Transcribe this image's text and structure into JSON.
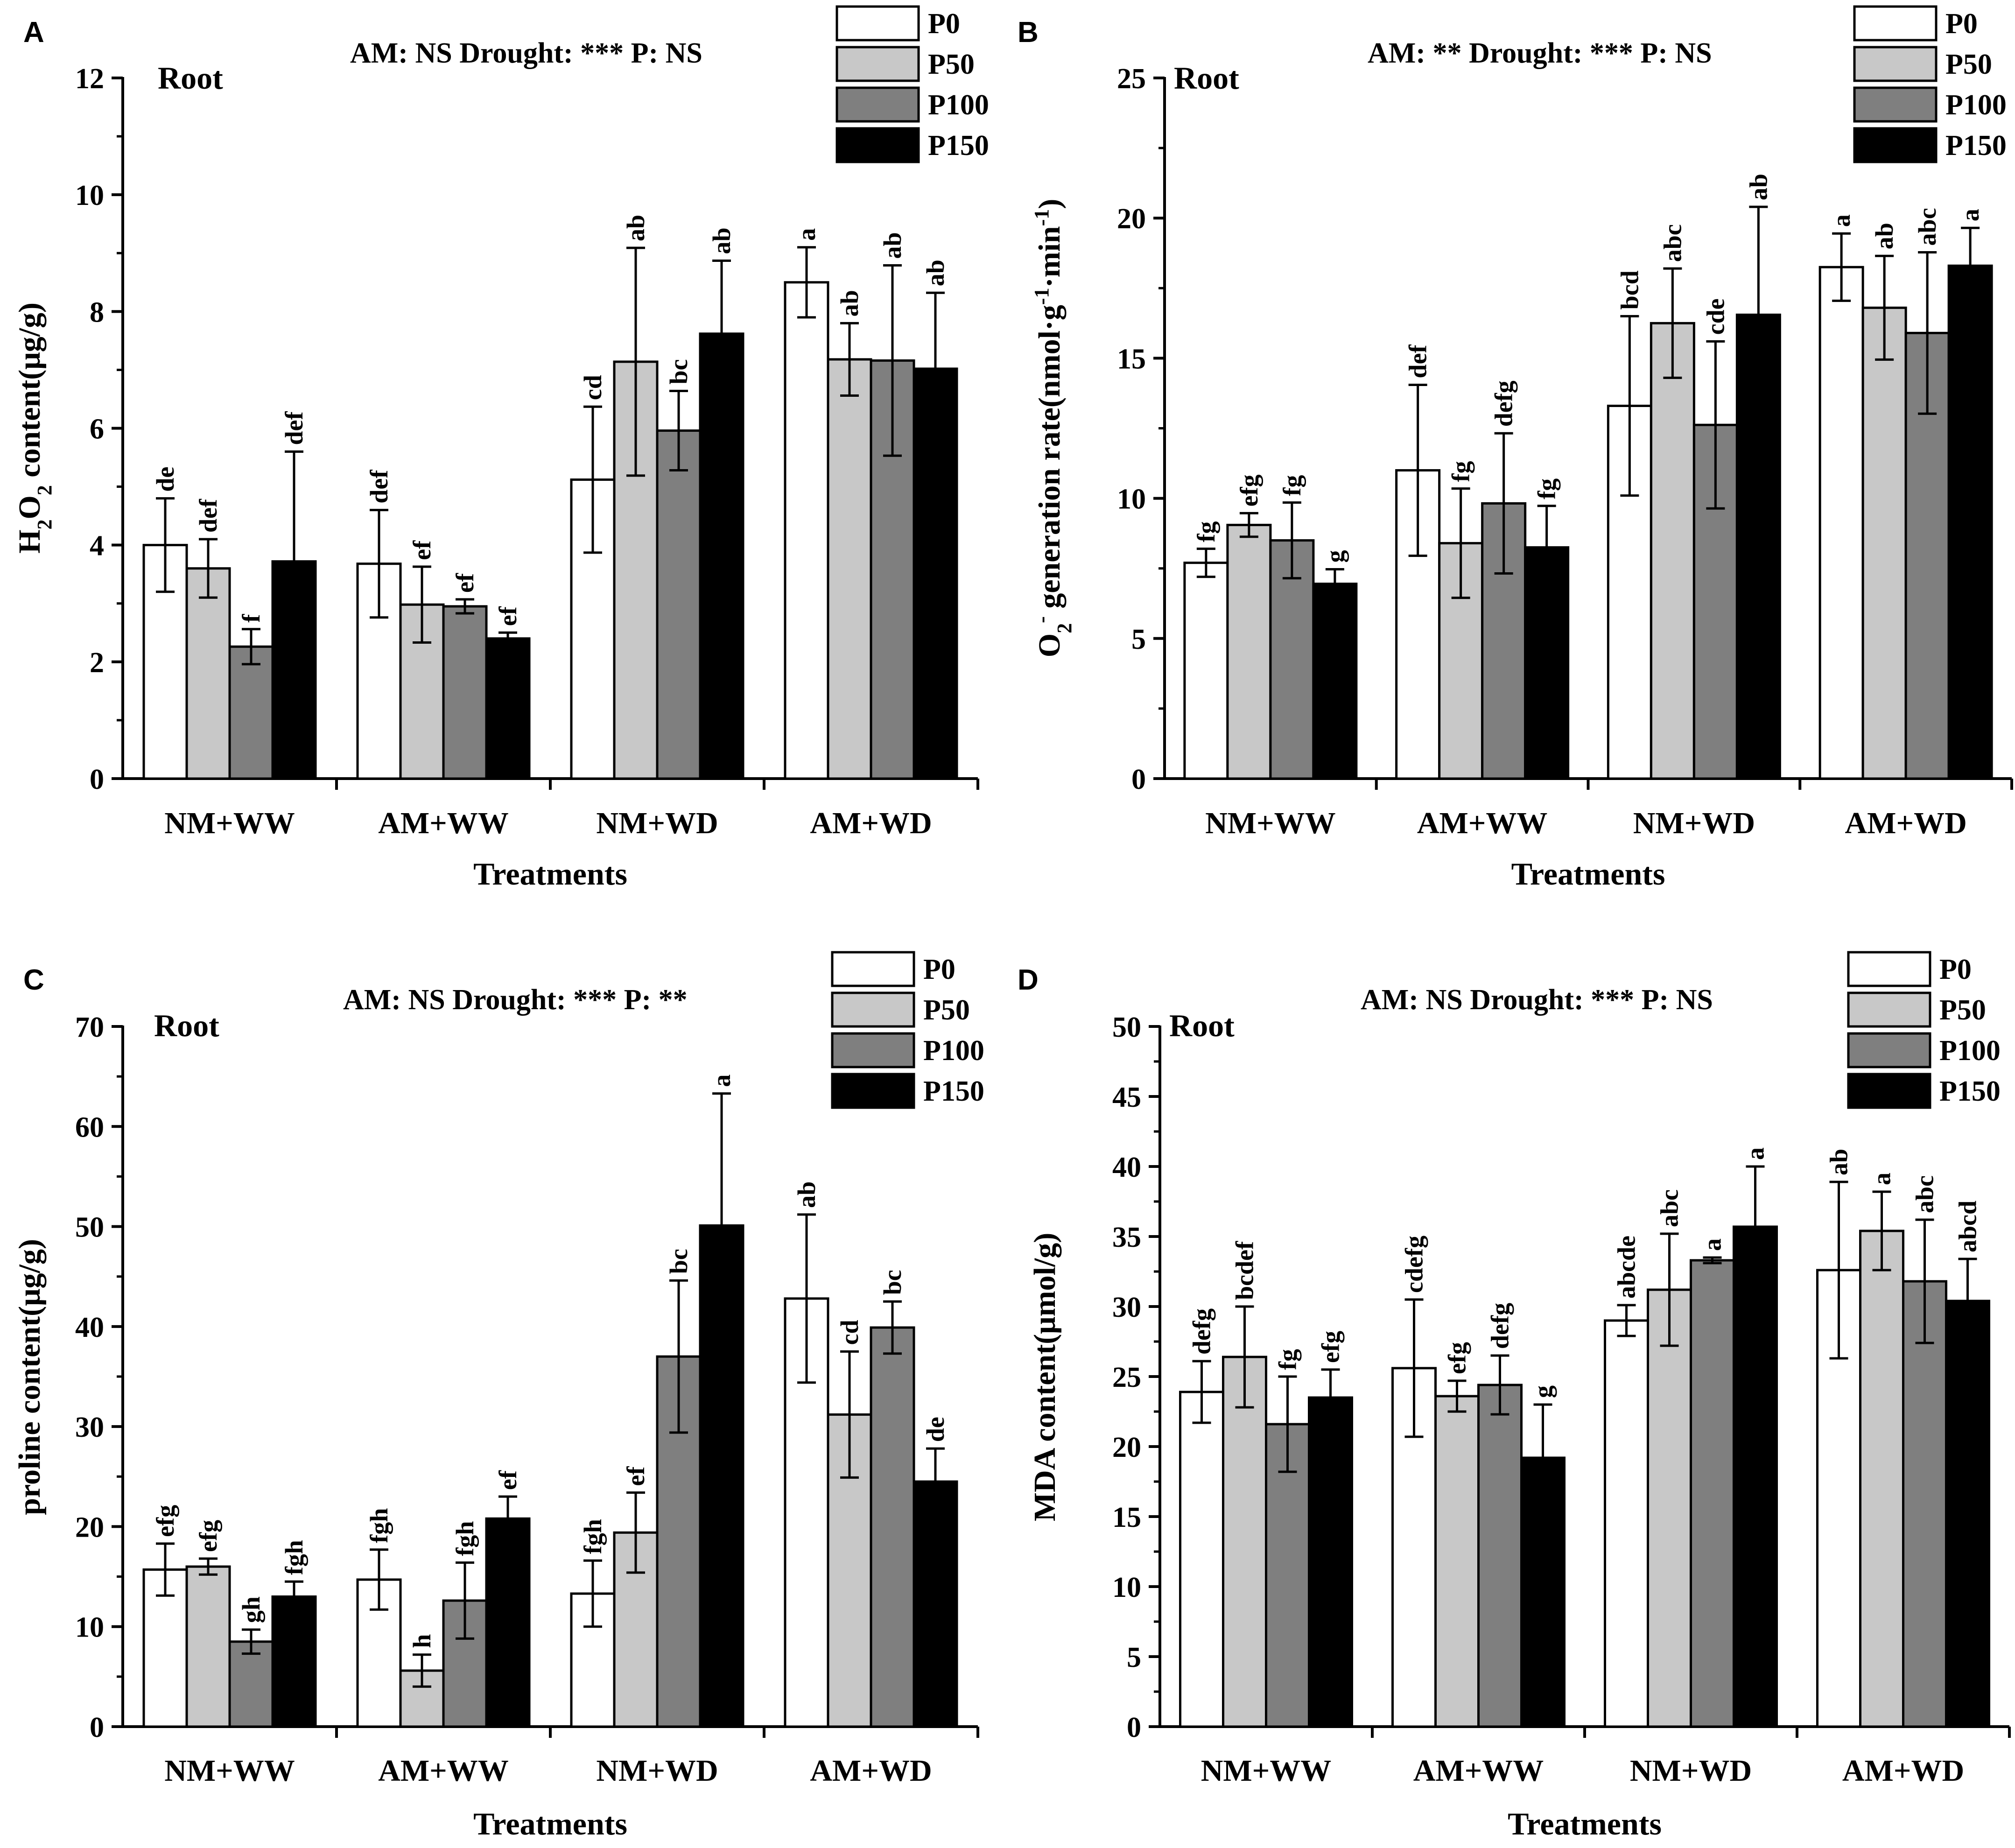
{
  "chart_data": [
    {
      "type": "bar",
      "panel": "A",
      "subtitle": "Root",
      "stats": "AM: NS  Drought: ***  P: NS",
      "xlabel": "Treatments",
      "ylabel_parts": [
        "H",
        "2",
        "O",
        "2",
        " content(μg/g)"
      ],
      "ylim": [
        0,
        12
      ],
      "yticks": [
        "0",
        "2",
        "4",
        "6",
        "8",
        "10",
        "12"
      ],
      "legend_position": "top-right",
      "categories": [
        "NM+WW",
        "AM+WW",
        "NM+WD",
        "AM+WD"
      ],
      "series": [
        {
          "name": "P0",
          "color": "#ffffff",
          "values": [
            4.0,
            3.68,
            5.12,
            8.5
          ],
          "errors": [
            0.8,
            0.92,
            1.25,
            0.6
          ],
          "labels": [
            "de",
            "def",
            "cd",
            "a"
          ]
        },
        {
          "name": "P50",
          "color": "#c8c8c8",
          "values": [
            3.6,
            2.98,
            7.14,
            7.18
          ],
          "errors": [
            0.5,
            0.65,
            1.95,
            0.62
          ],
          "labels": [
            "def",
            "ef",
            "ab",
            "ab"
          ]
        },
        {
          "name": "P100",
          "color": "#7f7f7f",
          "values": [
            2.26,
            2.95,
            5.96,
            7.16
          ],
          "errors": [
            0.3,
            0.12,
            0.68,
            1.63
          ],
          "labels": [
            "f",
            "ef",
            "bc",
            "ab"
          ]
        },
        {
          "name": "P150",
          "color": "#000000",
          "values": [
            3.72,
            2.4,
            7.62,
            7.02
          ],
          "errors": [
            1.88,
            0.1,
            1.25,
            1.3
          ],
          "labels": [
            "def",
            "ef",
            "ab",
            "ab"
          ]
        }
      ]
    },
    {
      "type": "bar",
      "panel": "B",
      "subtitle": "Root",
      "stats": "AM: **  Drought: ***  P: NS",
      "xlabel": "Treatments",
      "ylabel_parts": [
        "O",
        "2",
        "-",
        " generation rate(nmol·g",
        "-1",
        "·min",
        "-1",
        ")"
      ],
      "ylim": [
        0,
        25
      ],
      "yticks": [
        "0",
        "5",
        "10",
        "15",
        "20",
        "25"
      ],
      "legend_position": "top-right",
      "categories": [
        "NM+WW",
        "AM+WW",
        "NM+WD",
        "AM+WD"
      ],
      "series": [
        {
          "name": "P0",
          "color": "#ffffff",
          "values": [
            7.7,
            11.0,
            13.3,
            18.25
          ],
          "errors": [
            0.5,
            3.05,
            3.2,
            1.2
          ],
          "labels": [
            "fg",
            "def",
            "bcd",
            "a"
          ]
        },
        {
          "name": "P50",
          "color": "#c8c8c8",
          "values": [
            9.05,
            8.4,
            16.25,
            16.8
          ],
          "errors": [
            0.42,
            1.95,
            1.95,
            1.85
          ],
          "labels": [
            "efg",
            "fg",
            "abc",
            "ab"
          ]
        },
        {
          "name": "P100",
          "color": "#7f7f7f",
          "values": [
            8.5,
            9.82,
            12.62,
            15.9
          ],
          "errors": [
            1.35,
            2.5,
            2.98,
            2.88
          ],
          "labels": [
            "fg",
            "defg",
            "cde",
            "abc"
          ]
        },
        {
          "name": "P150",
          "color": "#000000",
          "values": [
            6.95,
            8.25,
            16.55,
            18.3
          ],
          "errors": [
            0.52,
            1.48,
            3.85,
            1.35
          ],
          "labels": [
            "g",
            "fg",
            "ab",
            "a"
          ]
        }
      ]
    },
    {
      "type": "bar",
      "panel": "C",
      "subtitle": "Root",
      "stats": "AM: NS  Drought: ***  P: **",
      "xlabel": "Treatments",
      "ylabel_parts": [
        "proline content(μg/g)"
      ],
      "ylim": [
        0,
        70
      ],
      "yticks": [
        "0",
        "10",
        "20",
        "30",
        "40",
        "50",
        "60",
        "70"
      ],
      "legend_position": "top-right",
      "categories": [
        "NM+WW",
        "AM+WW",
        "NM+WD",
        "AM+WD"
      ],
      "series": [
        {
          "name": "P0",
          "color": "#ffffff",
          "values": [
            15.7,
            14.7,
            13.3,
            42.8
          ],
          "errors": [
            2.6,
            3.0,
            3.3,
            8.4
          ],
          "labels": [
            "efg",
            "fgh",
            "fgh",
            "ab"
          ]
        },
        {
          "name": "P50",
          "color": "#c8c8c8",
          "values": [
            16.0,
            5.6,
            19.4,
            31.2
          ],
          "errors": [
            0.8,
            1.6,
            4.0,
            6.3
          ],
          "labels": [
            "efg",
            "h",
            "ef",
            "cd"
          ]
        },
        {
          "name": "P100",
          "color": "#7f7f7f",
          "values": [
            8.5,
            12.6,
            37.0,
            39.9
          ],
          "errors": [
            1.2,
            3.8,
            7.6,
            2.6
          ],
          "labels": [
            "gh",
            "fgh",
            "bc",
            "bc"
          ]
        },
        {
          "name": "P150",
          "color": "#000000",
          "values": [
            13.0,
            20.8,
            50.1,
            24.5
          ],
          "errors": [
            1.5,
            2.2,
            13.2,
            3.3
          ],
          "labels": [
            "fgh",
            "ef",
            "a",
            "de"
          ]
        }
      ]
    },
    {
      "type": "bar",
      "panel": "D",
      "subtitle": "Root",
      "stats": "AM: NS  Drought: ***  P: NS",
      "xlabel": "Treatments",
      "ylabel_parts": [
        "MDA content(μmol/g)"
      ],
      "ylim": [
        0,
        50
      ],
      "yticks": [
        "0",
        "5",
        "10",
        "15",
        "20",
        "25",
        "30",
        "35",
        "40",
        "45",
        "50"
      ],
      "legend_position": "top-right",
      "categories": [
        "NM+WW",
        "AM+WW",
        "NM+WD",
        "AM+WD"
      ],
      "series": [
        {
          "name": "P0",
          "color": "#ffffff",
          "values": [
            23.9,
            25.6,
            29.0,
            32.6
          ],
          "errors": [
            2.2,
            4.9,
            1.1,
            6.3
          ],
          "labels": [
            "defg",
            "cdefg",
            "abcde",
            "ab"
          ]
        },
        {
          "name": "P50",
          "color": "#c8c8c8",
          "values": [
            26.4,
            23.6,
            31.2,
            35.4
          ],
          "errors": [
            3.6,
            1.1,
            4.0,
            2.8
          ],
          "labels": [
            "bcdef",
            "efg",
            "abc",
            "a"
          ]
        },
        {
          "name": "P100",
          "color": "#7f7f7f",
          "values": [
            21.6,
            24.4,
            33.3,
            31.8
          ],
          "errors": [
            3.4,
            2.1,
            0.2,
            4.4
          ],
          "labels": [
            "fg",
            "defg",
            "a",
            "abc"
          ]
        },
        {
          "name": "P150",
          "color": "#000000",
          "values": [
            23.5,
            19.2,
            35.7,
            30.4
          ],
          "errors": [
            2.0,
            3.8,
            4.3,
            3.0
          ],
          "labels": [
            "efg",
            "g",
            "a",
            "abcd"
          ]
        }
      ]
    }
  ]
}
